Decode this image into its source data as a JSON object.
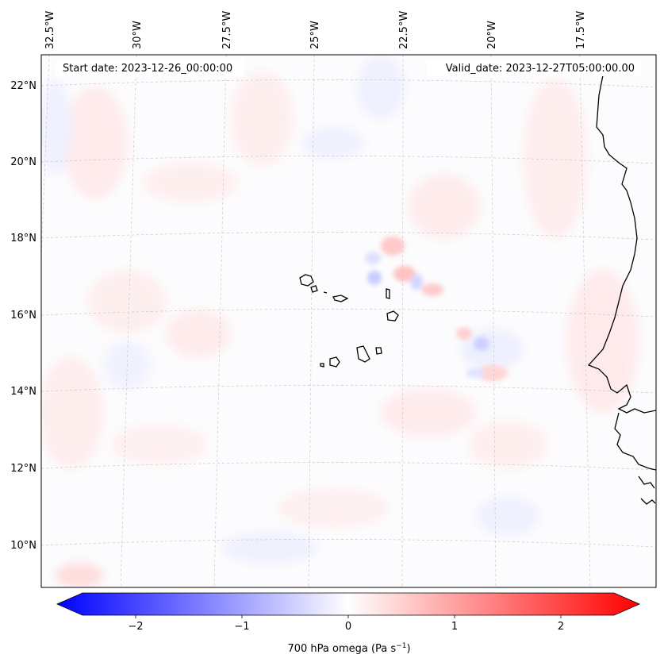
{
  "header": {
    "start_label": "Start date: 2023-12-26_00:00:00",
    "valid_label": "Valid_date: 2023-12-27T05:00:00.00"
  },
  "map": {
    "lon_labels": [
      "32.5°W",
      "30°W",
      "27.5°W",
      "25°W",
      "22.5°W",
      "20°W",
      "17.5°W"
    ],
    "lat_labels": [
      "22°N",
      "20°N",
      "18°N",
      "16°N",
      "14°N",
      "12°N",
      "10°N"
    ]
  },
  "colorbar": {
    "ticks": [
      "−2",
      "−1",
      "0",
      "1",
      "2"
    ],
    "label_main": "700 hPa omega (Pa s",
    "label_exp": "−1",
    "label_end": ")",
    "min_color": "#0000ff",
    "mid_color": "#ffffff",
    "max_color": "#ff0000"
  }
}
